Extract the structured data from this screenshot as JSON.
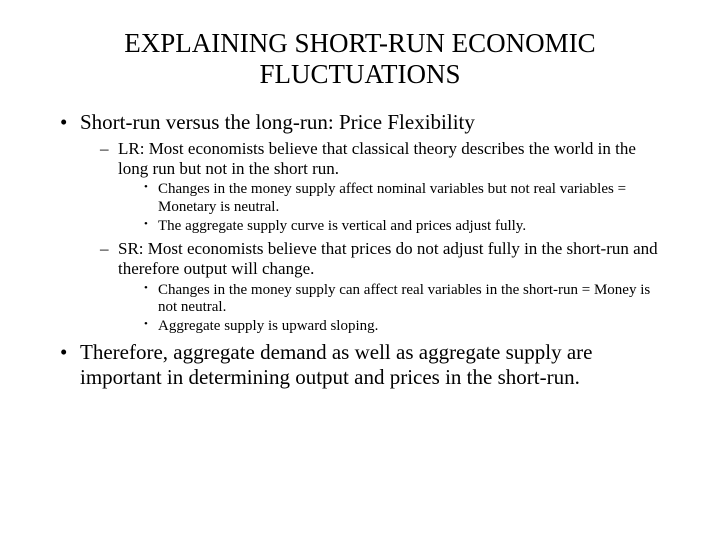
{
  "colors": {
    "background": "#ffffff",
    "text": "#000000"
  },
  "typography": {
    "font_family": "Times New Roman, Georgia, serif",
    "title_fontsize": 27,
    "level1_fontsize": 21,
    "level2_fontsize": 17,
    "level3_fontsize": 15
  },
  "title": "EXPLAINING SHORT-RUN ECONOMIC FLUCTUATIONS",
  "bullets": {
    "l1_0": "Short-run versus the long-run: Price Flexibility",
    "l2_0": "LR: Most economists believe that classical theory describes the world in the long run but not in the short run.",
    "l3_0": "Changes in the money supply affect nominal variables but not real variables = Monetary is neutral.",
    "l3_1": "The aggregate supply curve is vertical and prices adjust fully.",
    "l2_1": "SR: Most economists believe that prices do not adjust fully in the short-run and therefore output will change.",
    "l3_2": "Changes in the money supply can affect real variables in the short-run = Money is not neutral.",
    "l3_3": "Aggregate supply is upward sloping.",
    "l1_1": "Therefore, aggregate demand as well as aggregate supply are important in determining output and prices in the short-run."
  }
}
